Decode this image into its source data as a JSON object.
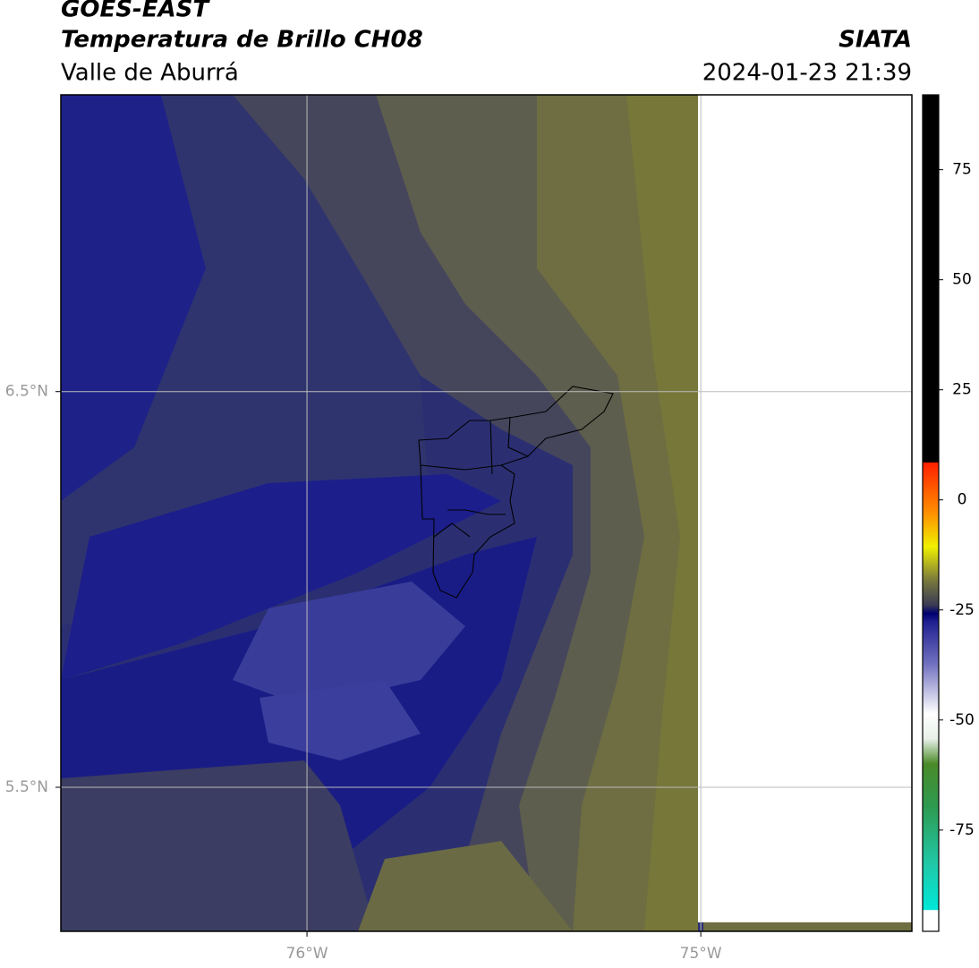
{
  "header": {
    "title": "GOES-EAST",
    "subtitle": "Temperatura de Brillo CH08",
    "region": "Valle de Aburrá",
    "source": "SIATA",
    "datetime": "2024-01-23 21:39"
  },
  "map": {
    "xlim": [
      -76.625,
      -74.464
    ],
    "ylim": [
      5.136,
      7.25
    ],
    "xticks": [
      {
        "value": -76,
        "label": "76°W"
      },
      {
        "value": -75,
        "label": "75°W"
      }
    ],
    "yticks": [
      {
        "value": 6.5,
        "label": "6.5°N"
      },
      {
        "value": 5.5,
        "label": "5.5°N"
      }
    ],
    "grid": true
  },
  "colorbar": {
    "lim": [
      -98,
      92
    ],
    "ticks": [
      75,
      50,
      25,
      0,
      -25,
      -50,
      -75
    ]
  }
}
